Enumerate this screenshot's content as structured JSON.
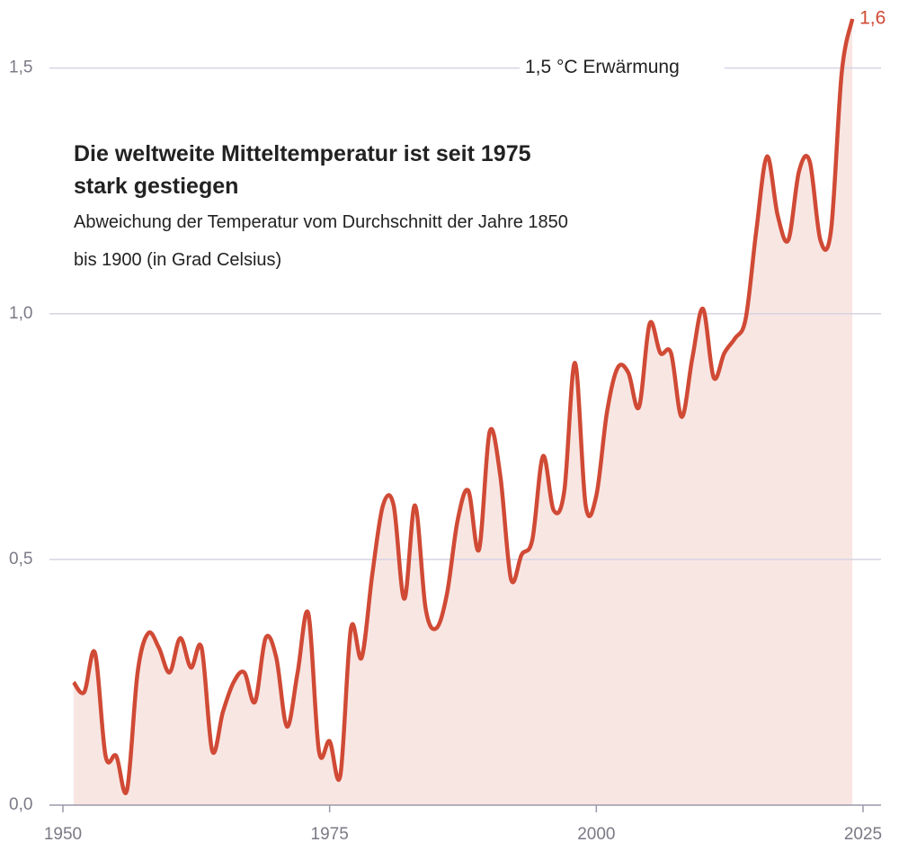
{
  "chart_data": {
    "type": "line",
    "title": "Die weltweite Mitteltemperatur ist seit 1975 stark gestiegen",
    "subtitle": "Abweichung der Temperatur vom Durchschnitt der Jahre 1850 bis 1900 (in Grad Celsius)",
    "annotation": "1,5 °C Erwärmung",
    "x": [
      1951,
      1952,
      1953,
      1954,
      1955,
      1956,
      1957,
      1958,
      1959,
      1960,
      1961,
      1962,
      1963,
      1964,
      1965,
      1966,
      1967,
      1968,
      1969,
      1970,
      1971,
      1972,
      1973,
      1974,
      1975,
      1976,
      1977,
      1978,
      1979,
      1980,
      1981,
      1982,
      1983,
      1984,
      1985,
      1986,
      1987,
      1988,
      1989,
      1990,
      1991,
      1992,
      1993,
      1994,
      1995,
      1996,
      1997,
      1998,
      1999,
      2000,
      2001,
      2002,
      2003,
      2004,
      2005,
      2006,
      2007,
      2008,
      2009,
      2010,
      2011,
      2012,
      2013,
      2014,
      2015,
      2016,
      2017,
      2018,
      2019,
      2020,
      2021,
      2022,
      2023,
      2024
    ],
    "values": [
      0.25,
      0.23,
      0.31,
      0.1,
      0.1,
      0.03,
      0.27,
      0.35,
      0.32,
      0.27,
      0.34,
      0.28,
      0.32,
      0.11,
      0.19,
      0.25,
      0.27,
      0.21,
      0.34,
      0.3,
      0.16,
      0.27,
      0.39,
      0.11,
      0.13,
      0.06,
      0.36,
      0.3,
      0.47,
      0.61,
      0.61,
      0.42,
      0.61,
      0.4,
      0.36,
      0.43,
      0.58,
      0.64,
      0.52,
      0.76,
      0.67,
      0.46,
      0.51,
      0.54,
      0.71,
      0.6,
      0.64,
      0.9,
      0.61,
      0.63,
      0.8,
      0.89,
      0.88,
      0.81,
      0.98,
      0.92,
      0.92,
      0.79,
      0.91,
      1.01,
      0.87,
      0.92,
      0.95,
      0.99,
      1.17,
      1.32,
      1.2,
      1.15,
      1.29,
      1.31,
      1.15,
      1.17,
      1.49,
      1.6
    ],
    "value_labels": [
      null,
      null,
      null,
      null,
      null,
      null,
      null,
      null,
      null,
      null,
      null,
      null,
      null,
      null,
      null,
      null,
      null,
      null,
      null,
      null,
      null,
      null,
      null,
      null,
      null,
      null,
      null,
      null,
      null,
      null,
      null,
      null,
      null,
      null,
      null,
      null,
      null,
      null,
      null,
      null,
      null,
      null,
      null,
      null,
      null,
      null,
      null,
      null,
      null,
      null,
      null,
      null,
      null,
      null,
      null,
      null,
      null,
      null,
      null,
      null,
      null,
      null,
      null,
      null,
      null,
      null,
      null,
      null,
      null,
      null,
      null,
      null,
      null,
      "1,6"
    ],
    "color": "#d04a35",
    "area_color": "#f8e6e3",
    "xlim": [
      1950,
      2025
    ],
    "xticks": [
      1950,
      1975,
      2000,
      2025
    ],
    "ylim": [
      0,
      1.6
    ],
    "yticks": [
      {
        "value": 0,
        "label": "0,0"
      },
      {
        "value": 0.5,
        "label": "0,5"
      },
      {
        "value": 1,
        "label": "1,0"
      },
      {
        "value": 1.5,
        "label": "1,5"
      }
    ],
    "grid": true
  }
}
